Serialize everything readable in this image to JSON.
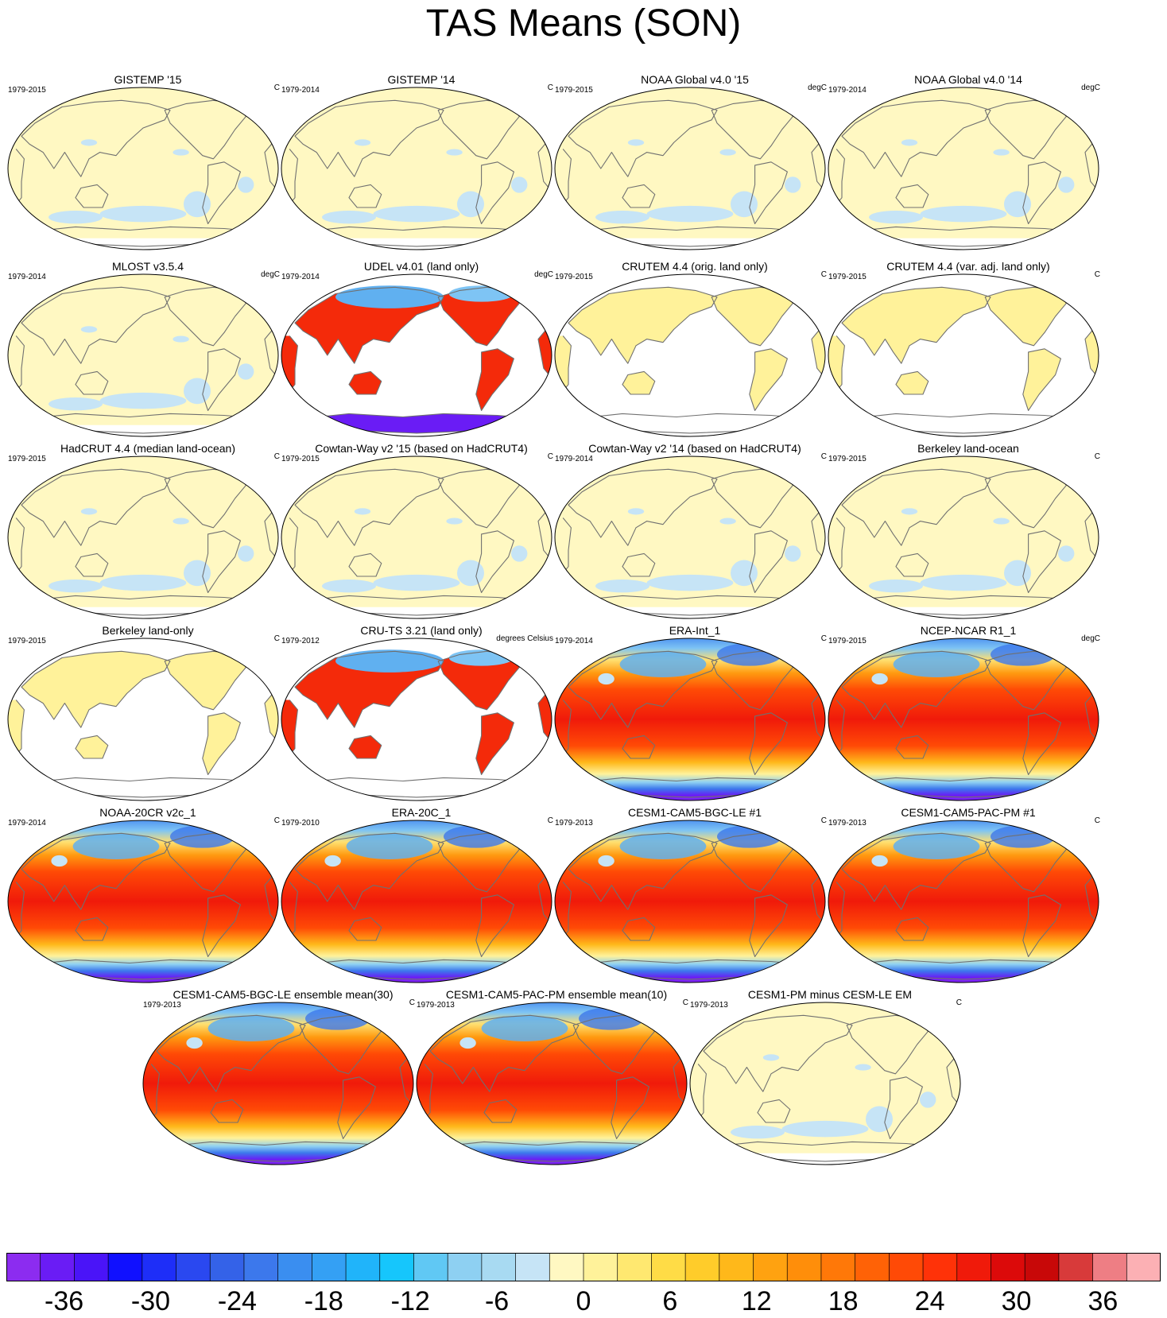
{
  "chart_data": {
    "type": "heatmap",
    "title": "TAS Means (SON)",
    "projection": "Robinson (Pacific-centered) global maps",
    "colorbar": {
      "tick_labels": [
        "-36",
        "-30",
        "-24",
        "-18",
        "-12",
        "-6",
        "0",
        "6",
        "12",
        "18",
        "24",
        "30",
        "36"
      ],
      "tick_values": [
        -36,
        -30,
        -24,
        -18,
        -12,
        -6,
        0,
        6,
        12,
        18,
        24,
        30,
        36
      ],
      "range": [
        -40,
        40
      ],
      "step": 2,
      "colors": [
        "#8c2cf0",
        "#6a1cf5",
        "#4a14f8",
        "#1010ff",
        "#1e2ef8",
        "#2a48f0",
        "#3462e8",
        "#3c78ec",
        "#3a8ef0",
        "#34a0f4",
        "#20b4fa",
        "#16c6fc",
        "#60c8f4",
        "#8ed0f2",
        "#a8daf2",
        "#c6e4f6",
        "#fff8c2",
        "#fff29a",
        "#ffe870",
        "#ffdc46",
        "#ffcc2a",
        "#ffb81a",
        "#ffa210",
        "#ff8e0a",
        "#ff7808",
        "#ff6206",
        "#ff4a06",
        "#ff3208",
        "#f01a0a",
        "#dc0a0a",
        "#c80808",
        "#d83a3a",
        "#ee7e84",
        "#fcb0b4"
      ]
    },
    "panels": [
      {
        "title": "GISTEMP '15",
        "period": "1979-2015",
        "units": "C",
        "field": "difference"
      },
      {
        "title": "GISTEMP '14",
        "period": "1979-2014",
        "units": "C",
        "field": "difference"
      },
      {
        "title": "NOAA Global v4.0 '15",
        "period": "1979-2015",
        "units": "degC",
        "field": "difference"
      },
      {
        "title": "NOAA Global v4.0 '14",
        "period": "1979-2014",
        "units": "degC",
        "field": "difference"
      },
      {
        "title": "MLOST v3.5.4",
        "period": "1979-2014",
        "units": "degC",
        "field": "difference"
      },
      {
        "title": "UDEL v4.01 (land only)",
        "period": "1979-2014",
        "units": "degC",
        "field": "land-absolute"
      },
      {
        "title": "CRUTEM 4.4 (orig. land only)",
        "period": "1979-2015",
        "units": "C",
        "field": "land-difference"
      },
      {
        "title": "CRUTEM 4.4 (var. adj. land only)",
        "period": "1979-2015",
        "units": "C",
        "field": "land-difference"
      },
      {
        "title": "HadCRUT 4.4 (median land-ocean)",
        "period": "1979-2015",
        "units": "C",
        "field": "difference"
      },
      {
        "title": "Cowtan-Way v2 '15 (based on HadCRUT4)",
        "period": "1979-2015",
        "units": "C",
        "field": "difference"
      },
      {
        "title": "Cowtan-Way v2 '14 (based on HadCRUT4)",
        "period": "1979-2014",
        "units": "C",
        "field": "difference"
      },
      {
        "title": "Berkeley land-ocean",
        "period": "1979-2015",
        "units": "C",
        "field": "difference"
      },
      {
        "title": "Berkeley land-only",
        "period": "1979-2015",
        "units": "C",
        "field": "land-difference"
      },
      {
        "title": "CRU-TS 3.21 (land only)",
        "period": "1979-2012",
        "units": "degrees Celsius",
        "field": "land-absolute"
      },
      {
        "title": "ERA-Int_1",
        "period": "1979-2014",
        "units": "C",
        "field": "absolute"
      },
      {
        "title": "NCEP-NCAR R1_1",
        "period": "1979-2015",
        "units": "degC",
        "field": "absolute"
      },
      {
        "title": "NOAA-20CR v2c_1",
        "period": "1979-2014",
        "units": "C",
        "field": "absolute"
      },
      {
        "title": "ERA-20C_1",
        "period": "1979-2010",
        "units": "C",
        "field": "absolute"
      },
      {
        "title": "CESM1-CAM5-BGC-LE #1",
        "period": "1979-2013",
        "units": "C",
        "field": "absolute"
      },
      {
        "title": "CESM1-CAM5-PAC-PM #1",
        "period": "1979-2013",
        "units": "C",
        "field": "absolute"
      },
      {
        "title": "CESM1-CAM5-BGC-LE ensemble mean(30)",
        "period": "1979-2013",
        "units": "C",
        "field": "absolute"
      },
      {
        "title": "CESM1-CAM5-PAC-PM ensemble mean(10)",
        "period": "1979-2013",
        "units": "C",
        "field": "absolute"
      },
      {
        "title": "CESM1-PM minus CESM-LE EM",
        "period": "1979-2013",
        "units": "C",
        "field": "difference"
      }
    ]
  }
}
